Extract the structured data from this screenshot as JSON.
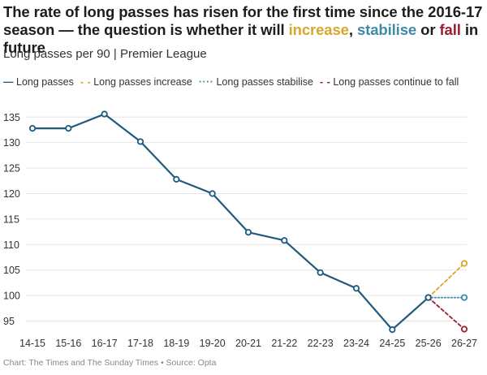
{
  "title": {
    "part1": "The rate of long passes has risen for the first time since the 2016-17 season — the question is whether it will ",
    "increase": "increase",
    "sep1": ", ",
    "stabilise": "stabilise",
    "sep2": " or ",
    "fall": "fall",
    "part2": " in future"
  },
  "subtitle": "Long passes per 90 | Premier League",
  "footer": "Chart: The Times and The Sunday Times • Source: Opta",
  "colors": {
    "main": "#1f5a7e",
    "increase": "#d9a62b",
    "stabilise": "#3e8aa6",
    "fall": "#9c1e2e",
    "grid": "#e6e6e6"
  },
  "chart_data": {
    "type": "line",
    "title": "The rate of long passes has risen for the first time since the 2016-17 season — the question is whether it will increase, stabilise or fall in future",
    "subtitle": "Long passes per 90 | Premier League",
    "xlabel": "",
    "ylabel": "",
    "categories": [
      "14-15",
      "15-16",
      "16-17",
      "17-18",
      "18-19",
      "19-20",
      "20-21",
      "21-22",
      "22-23",
      "23-24",
      "24-25",
      "25-26",
      "26-27"
    ],
    "yticks": [
      95,
      100,
      105,
      110,
      115,
      120,
      125,
      130,
      135
    ],
    "ylim": [
      93,
      136
    ],
    "grid": "horizontal",
    "legend_position": "top",
    "series": [
      {
        "name": "Long passes",
        "style": "solid",
        "color_key": "main",
        "x": [
          "14-15",
          "15-16",
          "16-17",
          "17-18",
          "18-19",
          "19-20",
          "20-21",
          "21-22",
          "22-23",
          "23-24",
          "24-25",
          "25-26"
        ],
        "values": [
          132.8,
          132.8,
          135.6,
          130.2,
          122.8,
          120.0,
          112.4,
          110.8,
          104.5,
          101.4,
          93.3,
          99.6
        ]
      },
      {
        "name": "Long passes increase",
        "style": "dashed",
        "color_key": "increase",
        "x": [
          "25-26",
          "26-27"
        ],
        "values": [
          99.6,
          106.3
        ]
      },
      {
        "name": "Long passes stabilise",
        "style": "dotted",
        "color_key": "stabilise",
        "x": [
          "25-26",
          "26-27"
        ],
        "values": [
          99.6,
          99.6
        ]
      },
      {
        "name": "Long passes continue to fall",
        "style": "dashed",
        "color_key": "fall",
        "x": [
          "25-26",
          "26-27"
        ],
        "values": [
          99.6,
          93.4
        ]
      }
    ]
  }
}
